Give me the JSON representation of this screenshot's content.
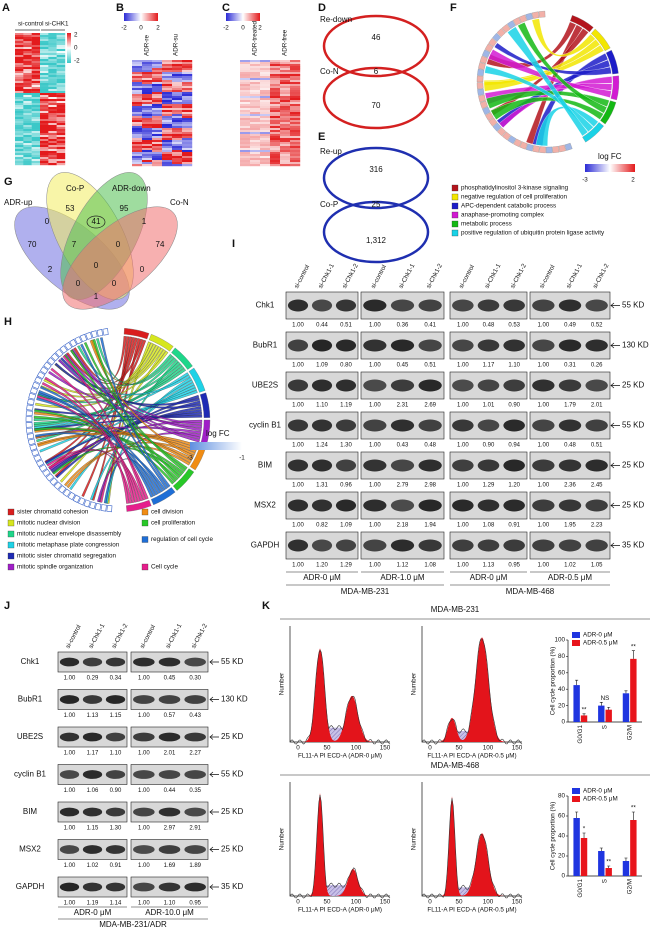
{
  "panels": {
    "A": {
      "letter": "A",
      "labels": [
        "si-control",
        "si-CHK1"
      ],
      "scale": [
        "2",
        "0",
        "-2"
      ]
    },
    "B": {
      "letter": "B",
      "scale": [
        "-2",
        "0",
        "2"
      ],
      "labels": [
        "ADR-re",
        "ADR-su"
      ]
    },
    "C": {
      "letter": "C",
      "scale": [
        "-2",
        "0",
        "2"
      ],
      "labels": [
        "ADR-treated",
        "ADR-free"
      ]
    },
    "D": {
      "letter": "D",
      "sets": [
        "Re-down",
        "Co-N"
      ],
      "counts": [
        "46",
        "6",
        "70"
      ]
    },
    "E": {
      "letter": "E",
      "sets": [
        "Re-up",
        "Co-P"
      ],
      "counts": [
        "316",
        "25",
        "1,312"
      ]
    },
    "F": {
      "letter": "F",
      "scale_title": "log FC",
      "scale": [
        "-3",
        "2"
      ],
      "terms": [
        {
          "label": "phosphatidylinositol 3-kinase signaling",
          "color": "#b3141c"
        },
        {
          "label": "negative regulation of cell proliferation",
          "color": "#f2e600"
        },
        {
          "label": "APC-dependent catabolic process",
          "color": "#1c1cc8"
        },
        {
          "label": "anaphase-promoting complex",
          "color": "#d21ad2"
        },
        {
          "label": "metabolic process",
          "color": "#14b814"
        },
        {
          "label": "positive regulation of ubiquitin protein ligase activity",
          "color": "#19d2e6"
        }
      ]
    },
    "G": {
      "letter": "G",
      "sets": [
        "ADR-up",
        "Co-P",
        "ADR-down",
        "Co-N"
      ],
      "counts": [
        "70",
        "0",
        "53",
        "41",
        "95",
        "1",
        "74",
        "7",
        "0",
        "2",
        "0",
        "0",
        "0",
        "0",
        "1"
      ]
    },
    "H": {
      "letter": "H",
      "scale_title": "log FC",
      "scale": [
        "-3",
        "-1"
      ],
      "terms": [
        {
          "label": "sister chromatid cohesion",
          "color": "#d91e1e"
        },
        {
          "label": "mitotic nuclear division",
          "color": "#d6e61e"
        },
        {
          "label": "mitotic nuclear envelope disassembly",
          "color": "#1ed68a"
        },
        {
          "label": "mitotic metaphase plate congression",
          "color": "#1ed2e6"
        },
        {
          "label": "mitotic sister chromatid segregation",
          "color": "#1e2ab4"
        },
        {
          "label": "mitotic spindle organization",
          "color": "#a01ec8"
        },
        {
          "label": "cell division",
          "color": "#f08c14"
        },
        {
          "label": "cell proliferation",
          "color": "#28c828"
        },
        {
          "label": "regulation of cell cycle",
          "color": "#1e6ed6"
        },
        {
          "label": "Cell cycle",
          "color": "#e61e8c"
        }
      ]
    },
    "I": {
      "letter": "I",
      "lanes": [
        "si-control",
        "si-Chk1-1",
        "si-Chk1-2"
      ],
      "proteins": [
        "Chk1",
        "BubR1",
        "UBE2S",
        "cyclin B1",
        "BIM",
        "MSX2",
        "GAPDH"
      ],
      "markers": [
        "55 KD",
        "130 KD",
        "25 KD",
        "55 KD",
        "25 KD",
        "25 KD",
        "35 KD"
      ],
      "blocks": [
        {
          "condition": "ADR-0 μM",
          "ratios": [
            [
              "1.00",
              "0.44",
              "0.51"
            ],
            [
              "1.00",
              "1.09",
              "0.80"
            ],
            [
              "1.00",
              "1.10",
              "1.19"
            ],
            [
              "1.00",
              "1.24",
              "1.30"
            ],
            [
              "1.00",
              "1.31",
              "0.96"
            ],
            [
              "1.00",
              "0.82",
              "1.09"
            ],
            [
              "1.00",
              "1.20",
              "1.29"
            ]
          ]
        },
        {
          "condition": "ADR-1.0 μM",
          "ratios": [
            [
              "1.00",
              "0.36",
              "0.41"
            ],
            [
              "1.00",
              "0.45",
              "0.51"
            ],
            [
              "1.00",
              "2.31",
              "2.69"
            ],
            [
              "1.00",
              "0.43",
              "0.48"
            ],
            [
              "1.00",
              "2.79",
              "2.98"
            ],
            [
              "1.00",
              "2.18",
              "1.94"
            ],
            [
              "1.00",
              "1.12",
              "1.08"
            ]
          ]
        },
        {
          "condition": "ADR-0 μM",
          "ratios": [
            [
              "1.00",
              "0.48",
              "0.53"
            ],
            [
              "1.00",
              "1.17",
              "1.10"
            ],
            [
              "1.00",
              "1.01",
              "0.90"
            ],
            [
              "1.00",
              "0.90",
              "0.94"
            ],
            [
              "1.00",
              "1.29",
              "1.20"
            ],
            [
              "1.00",
              "1.08",
              "0.91"
            ],
            [
              "1.00",
              "1.13",
              "0.95"
            ]
          ]
        },
        {
          "condition": "ADR-0.5 μM",
          "ratios": [
            [
              "1.00",
              "0.49",
              "0.52"
            ],
            [
              "1.00",
              "0.31",
              "0.26"
            ],
            [
              "1.00",
              "1.79",
              "2.01"
            ],
            [
              "1.00",
              "0.48",
              "0.51"
            ],
            [
              "1.00",
              "2.36",
              "2.45"
            ],
            [
              "1.00",
              "1.95",
              "2.23"
            ],
            [
              "1.00",
              "1.02",
              "1.05"
            ]
          ]
        }
      ],
      "cell_lines": [
        "MDA-MB-231",
        "MDA-MB-468"
      ]
    },
    "J": {
      "letter": "J",
      "lanes": [
        "si-control",
        "si-Chk1-1",
        "si-Chk1-2"
      ],
      "proteins": [
        "Chk1",
        "BubR1",
        "UBE2S",
        "cyclin B1",
        "BIM",
        "MSX2",
        "GAPDH"
      ],
      "markers": [
        "55 KD",
        "130 KD",
        "25 KD",
        "55 KD",
        "25 KD",
        "25 KD",
        "35 KD"
      ],
      "blocks": [
        {
          "condition": "ADR-0 μM",
          "ratios": [
            [
              "1.00",
              "0.29",
              "0.34"
            ],
            [
              "1.00",
              "1.13",
              "1.15"
            ],
            [
              "1.00",
              "1.17",
              "1.10"
            ],
            [
              "1.00",
              "1.06",
              "0.90"
            ],
            [
              "1.00",
              "1.15",
              "1.30"
            ],
            [
              "1.00",
              "1.02",
              "0.91"
            ],
            [
              "1.00",
              "1.19",
              "1.14"
            ]
          ]
        },
        {
          "condition": "ADR-10.0 μM",
          "ratios": [
            [
              "1.00",
              "0.45",
              "0.30"
            ],
            [
              "1.00",
              "0.57",
              "0.43"
            ],
            [
              "1.00",
              "2.01",
              "2.27"
            ],
            [
              "1.00",
              "0.44",
              "0.35"
            ],
            [
              "1.00",
              "2.97",
              "2.91"
            ],
            [
              "1.00",
              "1.69",
              "1.89"
            ],
            [
              "1.00",
              "1.10",
              "0.95"
            ]
          ]
        }
      ],
      "cell_line": "MDA-MB-231/ADR"
    },
    "K": {
      "letter": "K",
      "cell_lines": [
        "MDA-MB-231",
        "MDA-MB-468"
      ],
      "y_label": "Number",
      "x_labels": [
        "FL11-A PI ECD-A (ADR-0 μM)",
        "FL11-A PI ECD-A (ADR-0.5 μM)"
      ],
      "x_ticks": [
        "0",
        "50",
        "100",
        "150"
      ]
    }
  },
  "chart_data": [
    {
      "type": "bar",
      "y_label": "Cell cycle proportion (%)",
      "categories": [
        "G0/G1",
        "S",
        "G2/M"
      ],
      "series": [
        {
          "name": "ADR-0 μM",
          "color": "#1f35e0",
          "values": [
            45,
            20,
            35
          ],
          "errors": [
            6,
            4,
            3
          ]
        },
        {
          "name": "ADR-0.5 μM",
          "color": "#e8141b",
          "values": [
            8,
            15,
            77
          ],
          "errors": [
            2,
            3,
            10
          ]
        }
      ],
      "annotations": [
        "**",
        "NS",
        "**"
      ],
      "ylim": [
        0,
        100
      ],
      "yticks": [
        0,
        20,
        40,
        60,
        80,
        100
      ]
    },
    {
      "type": "bar",
      "y_label": "Cell cycle proportion (%)",
      "categories": [
        "G0/G1",
        "S",
        "G2/M"
      ],
      "series": [
        {
          "name": "ADR-0 μM",
          "color": "#1f35e0",
          "values": [
            58,
            25,
            15
          ],
          "errors": [
            6,
            3,
            3
          ]
        },
        {
          "name": "ADR-0.5 μM",
          "color": "#e8141b",
          "values": [
            38,
            8,
            56
          ],
          "errors": [
            5,
            2,
            8
          ]
        }
      ],
      "annotations": [
        "*",
        "**",
        "**"
      ],
      "ylim": [
        0,
        80
      ],
      "yticks": [
        0,
        20,
        40,
        60,
        80
      ]
    }
  ]
}
